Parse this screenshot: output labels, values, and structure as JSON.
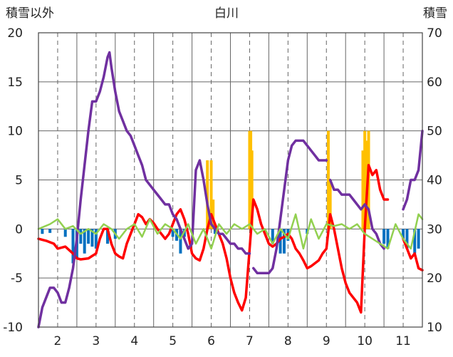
{
  "chart_data": {
    "type": "line",
    "title": "白川",
    "ylabel_left": "積雪以外",
    "ylabel_right": "積雪",
    "ylim_left": [
      -10,
      20
    ],
    "ylim_right": [
      10,
      70
    ],
    "xlim": [
      1.5,
      11.5
    ],
    "left_ticks": [
      "20",
      "15",
      "10",
      "5",
      "0",
      "-5",
      "-10"
    ],
    "right_ticks": [
      "70",
      "60",
      "50",
      "40",
      "30",
      "20",
      "10"
    ],
    "x_ticks": [
      {
        "x": 2,
        "label": "2"
      },
      {
        "x": 3,
        "label": "3"
      },
      {
        "x": 4,
        "label": "4"
      },
      {
        "x": 5,
        "label": "5"
      },
      {
        "x": 6,
        "label": "6"
      },
      {
        "x": 7,
        "label": "7"
      },
      {
        "x": 8,
        "label": "8"
      },
      {
        "x": 9,
        "label": "9"
      },
      {
        "x": 10,
        "label": "10"
      },
      {
        "x": 11,
        "label": "11"
      }
    ],
    "grid": true,
    "colors": {
      "red": "#ff0000",
      "purple": "#7030a0",
      "green": "#92d050",
      "orange_bar": "#ffc000",
      "blue_bar": "#0070c0",
      "grid": "#666666"
    },
    "series": [
      {
        "axis": "left",
        "color": "#ff0000",
        "kind": "line",
        "x": [
          1.5,
          1.7,
          1.9,
          2.0,
          2.2,
          2.4,
          2.5,
          2.6,
          2.8,
          3.0,
          3.1,
          3.2,
          3.3,
          3.4,
          3.5,
          3.6,
          3.7,
          3.8,
          3.9,
          4.0,
          4.1,
          4.2,
          4.3,
          4.4,
          4.5,
          4.6,
          4.7,
          4.8,
          4.9,
          5.0,
          5.1,
          5.2,
          5.3,
          5.4,
          5.5,
          5.6,
          5.7,
          5.8,
          5.9,
          6.0,
          6.1,
          6.2,
          6.3,
          6.4,
          6.5,
          6.6,
          6.7,
          6.8,
          6.9,
          7.0,
          7.1,
          7.2,
          7.3,
          7.4,
          7.5,
          7.6,
          7.7,
          7.8,
          7.9,
          8.0,
          8.1,
          8.2,
          8.3,
          8.4,
          8.5,
          8.6,
          8.7,
          8.8,
          8.9,
          9.0,
          9.1,
          9.2,
          9.3,
          9.4,
          9.5,
          9.6,
          9.7,
          9.8,
          9.9,
          10.0,
          10.1,
          10.2,
          10.3,
          10.4,
          10.5,
          10.6,
          null,
          11.0,
          11.1,
          11.2,
          11.3,
          11.4,
          11.5
        ],
        "values": [
          -1,
          -1.2,
          -1.5,
          -2,
          -1.8,
          -2.5,
          -3,
          -3.1,
          -3,
          -2.5,
          -1,
          0,
          0,
          -1.5,
          -2.5,
          -2.8,
          -3,
          -1.5,
          -0.5,
          0.5,
          1.5,
          1.2,
          0.5,
          1,
          0.6,
          0,
          -0.5,
          -1,
          -0.5,
          0.5,
          1.5,
          2,
          1,
          -0.5,
          -2.5,
          -3,
          -3.2,
          -2,
          0,
          1.5,
          0.5,
          -0.5,
          -1.5,
          -3,
          -5,
          -6.5,
          -7.5,
          -8.3,
          -7,
          -2,
          3,
          2,
          0.5,
          -0.5,
          -1.5,
          -1.8,
          -1.5,
          -1,
          -0.8,
          -0.5,
          -1,
          -2,
          -2.5,
          -3.2,
          -4,
          -3.8,
          -3.5,
          -3.2,
          -2.5,
          -2,
          1.5,
          0,
          -2,
          -4,
          -5.5,
          -6.5,
          -7,
          -7.5,
          -8.5,
          0,
          6.5,
          5.5,
          6,
          4,
          3,
          3,
          null,
          -1,
          -2,
          -3,
          -2.5,
          -4,
          -4.2
        ]
      },
      {
        "axis": "right",
        "color": "#7030a0",
        "kind": "line",
        "x": [
          1.5,
          1.6,
          1.7,
          1.8,
          1.9,
          2.0,
          2.1,
          2.2,
          2.3,
          2.4,
          2.5,
          2.6,
          2.7,
          2.8,
          2.9,
          3.0,
          3.1,
          3.2,
          3.3,
          3.35,
          3.4,
          3.5,
          3.6,
          3.7,
          3.8,
          3.9,
          4.0,
          4.1,
          4.2,
          4.3,
          4.4,
          4.5,
          4.6,
          4.7,
          4.8,
          4.9,
          5.0,
          5.1,
          5.2,
          5.3,
          5.4,
          5.5,
          5.6,
          5.7,
          5.8,
          5.9,
          6.0,
          6.1,
          6.2,
          6.3,
          6.4,
          6.5,
          6.6,
          6.7,
          6.8,
          6.9,
          7.0,
          null,
          7.1,
          7.2,
          7.3,
          7.4,
          7.5,
          7.6,
          7.7,
          7.8,
          7.9,
          8.0,
          8.1,
          8.2,
          8.3,
          8.4,
          8.5,
          8.6,
          8.7,
          8.8,
          8.9,
          9.0,
          null,
          9.1,
          9.2,
          9.3,
          9.4,
          9.5,
          9.6,
          9.7,
          9.8,
          9.9,
          10.0,
          10.1,
          10.2,
          10.3,
          10.4,
          10.5,
          null,
          11.0,
          11.1,
          11.2,
          11.3,
          11.4,
          11.5
        ],
        "values": [
          10,
          14,
          16,
          18,
          18,
          17,
          15,
          15,
          18,
          22,
          28,
          36,
          43,
          50,
          56,
          56,
          58,
          61,
          65,
          66,
          63,
          58,
          54,
          52,
          50,
          49,
          47,
          45,
          43,
          40,
          39,
          38,
          37,
          36,
          35,
          35,
          33,
          32,
          30,
          28,
          26,
          27,
          42,
          44,
          40,
          35,
          31,
          30,
          29,
          29,
          28,
          27,
          27,
          26,
          26,
          25,
          25,
          null,
          22,
          21,
          21,
          21,
          21,
          22,
          26,
          32,
          38,
          44,
          47,
          48,
          48,
          48,
          47,
          46,
          45,
          44,
          44,
          44,
          null,
          40,
          38,
          38,
          37,
          37,
          37,
          36,
          35,
          34,
          35,
          34,
          30,
          29,
          27,
          26,
          null,
          34,
          36,
          40,
          40,
          42,
          50
        ]
      },
      {
        "axis": "left",
        "color": "#92d050",
        "kind": "line",
        "x": [
          1.5,
          1.8,
          2.0,
          2.2,
          2.4,
          2.6,
          2.8,
          3.0,
          3.2,
          3.4,
          3.6,
          3.8,
          4.0,
          4.2,
          4.4,
          4.6,
          4.8,
          5.0,
          5.2,
          5.4,
          5.6,
          5.8,
          6.0,
          6.2,
          6.4,
          6.6,
          6.8,
          7.0,
          7.2,
          7.4,
          7.6,
          7.8,
          8.0,
          8.2,
          8.4,
          8.6,
          8.8,
          9.0,
          9.2,
          9.4,
          9.6,
          9.8,
          10.0,
          10.2,
          10.4,
          10.6,
          10.8,
          11.0,
          11.2,
          11.4,
          11.5
        ],
        "values": [
          0,
          0.5,
          1,
          0,
          0.3,
          -0.5,
          0,
          -0.5,
          0.5,
          0,
          -1,
          0,
          0.5,
          -0.8,
          1,
          -0.5,
          0.5,
          0,
          -1,
          0.5,
          -1.5,
          0,
          -2,
          0.5,
          -0.5,
          0.5,
          0,
          0.5,
          -0.5,
          0,
          -1.5,
          0,
          -1,
          1.5,
          -2,
          1,
          -1,
          0.5,
          0.3,
          0.5,
          0,
          0.5,
          -0.5,
          -1,
          -1.5,
          -2,
          0.5,
          -1,
          -2,
          1.5,
          1
        ]
      }
    ],
    "bars": [
      {
        "axis": "left",
        "color": "#0070c0",
        "kind": "bar",
        "x": [
          1.6,
          1.8,
          2.2,
          2.4,
          2.5,
          2.6,
          2.7,
          2.8,
          2.9,
          3.0,
          3.3,
          3.5,
          5.0,
          5.1,
          5.2,
          5.3,
          6.1,
          7.6,
          7.8,
          7.9,
          8.0,
          8.5,
          10.5,
          10.6,
          11.0,
          11.1,
          11.3,
          11.4
        ],
        "values": [
          -0.5,
          -0.4,
          -0.8,
          -3.5,
          -3,
          -1.5,
          -2.5,
          -1.5,
          -1.8,
          -2,
          -1.5,
          -1,
          -0.8,
          -1.2,
          -2.5,
          -0.8,
          -0.5,
          -1.5,
          -2.5,
          -2.5,
          -1.2,
          -0.5,
          -1.5,
          -2,
          -1,
          -2,
          -2.5,
          -2
        ]
      },
      {
        "axis": "left",
        "color": "#ffc000",
        "kind": "bar",
        "x": [
          5.9,
          5.95,
          6.0,
          6.05,
          7.0,
          7.03,
          7.06,
          9.05,
          9.1,
          9.95,
          10.0,
          10.05,
          10.1
        ],
        "values": [
          7,
          2,
          7,
          3,
          10,
          10,
          8,
          10,
          5,
          8,
          10,
          9,
          10
        ]
      }
    ]
  }
}
